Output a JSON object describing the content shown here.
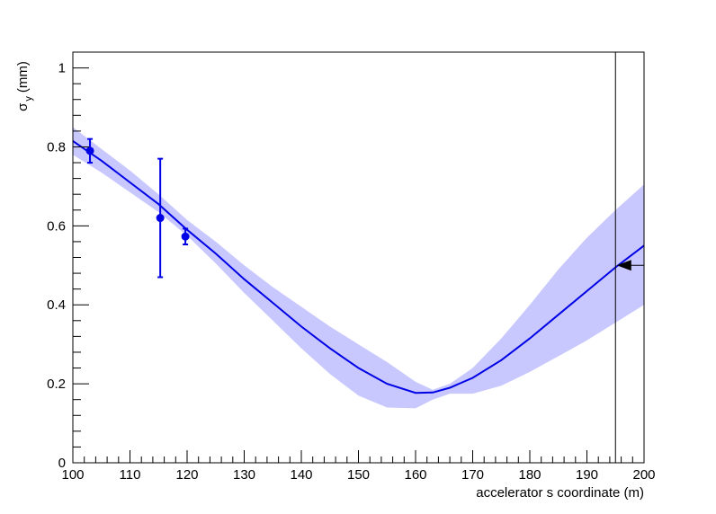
{
  "chart_data": {
    "type": "line",
    "xlabel": "accelerator s coordinate (m)",
    "ylabel_main": "σ",
    "ylabel_sub": "y",
    "ylabel_unit": "(mm)",
    "xlim": [
      100,
      200
    ],
    "ylim": [
      0,
      1.04
    ],
    "x_ticks": [
      100,
      110,
      120,
      130,
      140,
      150,
      160,
      170,
      180,
      190,
      200
    ],
    "x_tick_labels": [
      "100",
      "110",
      "120",
      "130",
      "140",
      "150",
      "160",
      "170",
      "180",
      "190",
      "200"
    ],
    "y_ticks": [
      0,
      0.2,
      0.4,
      0.6,
      0.8,
      1
    ],
    "y_tick_labels": [
      "0",
      "0.2",
      "0.4",
      "0.6",
      "0.8",
      "1"
    ],
    "grid": false,
    "colors": {
      "fit_line": "#0000e6",
      "band": "#c8c8ff",
      "points": "#0000e6",
      "marker": "#000000"
    },
    "fit_curve": {
      "x": [
        100,
        105,
        110,
        115,
        120,
        125,
        130,
        135,
        140,
        145,
        150,
        155,
        160,
        163,
        166,
        170,
        175,
        180,
        185,
        190,
        195,
        200
      ],
      "y": [
        0.815,
        0.765,
        0.71,
        0.655,
        0.59,
        0.53,
        0.465,
        0.405,
        0.345,
        0.29,
        0.24,
        0.2,
        0.177,
        0.178,
        0.19,
        0.215,
        0.26,
        0.315,
        0.375,
        0.435,
        0.495,
        0.55
      ]
    },
    "confidence_band": {
      "x": [
        100,
        105,
        110,
        115,
        120,
        125,
        130,
        135,
        140,
        145,
        150,
        155,
        160,
        163,
        166,
        170,
        175,
        180,
        185,
        190,
        195,
        200
      ],
      "lower": [
        0.78,
        0.735,
        0.685,
        0.635,
        0.575,
        0.505,
        0.43,
        0.36,
        0.29,
        0.225,
        0.17,
        0.14,
        0.138,
        0.16,
        0.175,
        0.175,
        0.195,
        0.23,
        0.27,
        0.31,
        0.355,
        0.4
      ],
      "upper": [
        0.85,
        0.795,
        0.74,
        0.68,
        0.615,
        0.56,
        0.5,
        0.445,
        0.395,
        0.345,
        0.3,
        0.255,
        0.205,
        0.185,
        0.2,
        0.24,
        0.315,
        0.4,
        0.49,
        0.57,
        0.64,
        0.705
      ]
    },
    "measurements": [
      {
        "x": 103,
        "y": 0.79,
        "err": 0.03
      },
      {
        "x": 115.3,
        "y": 0.62,
        "err": 0.15
      },
      {
        "x": 119.7,
        "y": 0.573,
        "err": 0.02
      }
    ],
    "marker_line_x": 195,
    "arrow_marker": {
      "x": 196.5,
      "y": 0.5
    }
  }
}
